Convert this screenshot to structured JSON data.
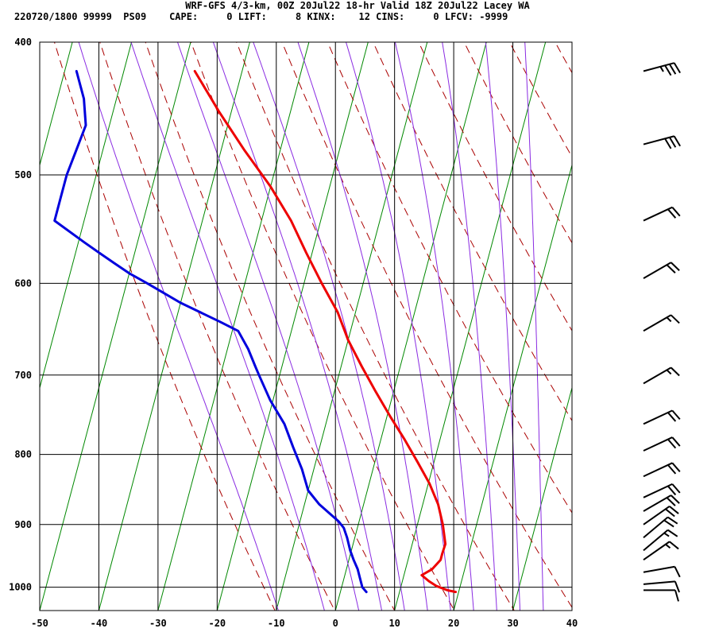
{
  "header": {
    "title": "WRF-GFS 4/3-km, 00Z 20Jul22 18-hr Valid 18Z 20Jul22 Lacey WA",
    "station_line": "220720/1800 99999  PS09    CAPE:     0 LIFT:     8 KINX:    12 CINS:     0 LFCV: -9999"
  },
  "colors": {
    "temperature": "#ee0000",
    "dewpoint": "#0000dd",
    "dry_adiabat": "#aa0000",
    "moist_adiabat": "#8a2be2",
    "isotherm": "#008800",
    "grid": "#000000",
    "barb": "#000000"
  },
  "chart_data": {
    "type": "line",
    "subtype": "skew-t log-p sounding",
    "x_ticks": [
      -50,
      -40,
      -30,
      -20,
      -10,
      0,
      10,
      20,
      30,
      40
    ],
    "y_ticks": [
      400,
      500,
      600,
      700,
      800,
      900,
      1000
    ],
    "x_range": [
      -50,
      40
    ],
    "y_range": [
      400,
      1040
    ],
    "y_scale": "log (pressure, inverted)",
    "skew_deg_c_per_log10_p": 61.5,
    "isotherms": [
      -120,
      -110,
      -100,
      -90,
      -80,
      -70,
      -60,
      -50,
      -40,
      -30,
      -20,
      -10,
      0,
      10,
      20,
      30,
      40
    ],
    "dry_adiabats_theta_k": [
      260,
      270,
      280,
      290,
      300,
      310,
      320,
      330,
      340,
      350,
      360,
      370,
      380,
      390
    ],
    "moist_adiabats_t1000_c": [
      -12,
      -4,
      2,
      6,
      10,
      14,
      18,
      22,
      26,
      30,
      34
    ],
    "series": [
      {
        "name": "Temperature",
        "pressure": [
          1008,
          1005,
          998,
          990,
          980,
          970,
          955,
          945,
          930,
          900,
          870,
          840,
          810,
          780,
          750,
          720,
          690,
          660,
          630,
          600,
          570,
          540,
          510,
          480,
          450,
          420
        ],
        "values": [
          19.5,
          18.0,
          16.0,
          14.5,
          13.0,
          14.5,
          15.5,
          15.5,
          15.6,
          14.3,
          12.6,
          10.2,
          7.2,
          4.0,
          0.5,
          -3.0,
          -6.5,
          -10.0,
          -13.0,
          -17.0,
          -21.0,
          -25.0,
          -30.0,
          -36.0,
          -42.0,
          -48.0
        ]
      },
      {
        "name": "Dewpoint",
        "pressure": [
          1008,
          1000,
          985,
          970,
          955,
          940,
          920,
          905,
          895,
          870,
          850,
          820,
          790,
          760,
          730,
          700,
          690,
          670,
          650,
          640,
          620,
          600,
          590,
          580,
          570,
          560,
          540,
          520,
          500,
          480,
          460,
          440,
          420
        ],
        "values": [
          4.4,
          3.5,
          2.7,
          1.9,
          0.8,
          -0.2,
          -1.3,
          -2.3,
          -3.5,
          -7.5,
          -10.0,
          -12.0,
          -14.5,
          -17.0,
          -20.5,
          -23.5,
          -24.5,
          -26.5,
          -29.0,
          -32.5,
          -40.0,
          -46.5,
          -50.0,
          -53.0,
          -56.0,
          -59.0,
          -65.0,
          -65.0,
          -65.0,
          -64.5,
          -64.0,
          -65.5,
          -68.0
        ]
      }
    ],
    "wind_barbs": [
      {
        "p": 420,
        "dir": 255,
        "kt": 35
      },
      {
        "p": 475,
        "dir": 255,
        "kt": 30
      },
      {
        "p": 540,
        "dir": 245,
        "kt": 20
      },
      {
        "p": 595,
        "dir": 240,
        "kt": 20
      },
      {
        "p": 650,
        "dir": 240,
        "kt": 15
      },
      {
        "p": 710,
        "dir": 240,
        "kt": 15
      },
      {
        "p": 760,
        "dir": 245,
        "kt": 20
      },
      {
        "p": 795,
        "dir": 245,
        "kt": 20
      },
      {
        "p": 830,
        "dir": 245,
        "kt": 20
      },
      {
        "p": 860,
        "dir": 245,
        "kt": 20
      },
      {
        "p": 880,
        "dir": 240,
        "kt": 20
      },
      {
        "p": 900,
        "dir": 235,
        "kt": 20
      },
      {
        "p": 920,
        "dir": 230,
        "kt": 20
      },
      {
        "p": 940,
        "dir": 230,
        "kt": 15
      },
      {
        "p": 955,
        "dir": 235,
        "kt": 15
      },
      {
        "p": 975,
        "dir": 260,
        "kt": 10
      },
      {
        "p": 995,
        "dir": 265,
        "kt": 10
      },
      {
        "p": 1005,
        "dir": 270,
        "kt": 10
      }
    ]
  }
}
